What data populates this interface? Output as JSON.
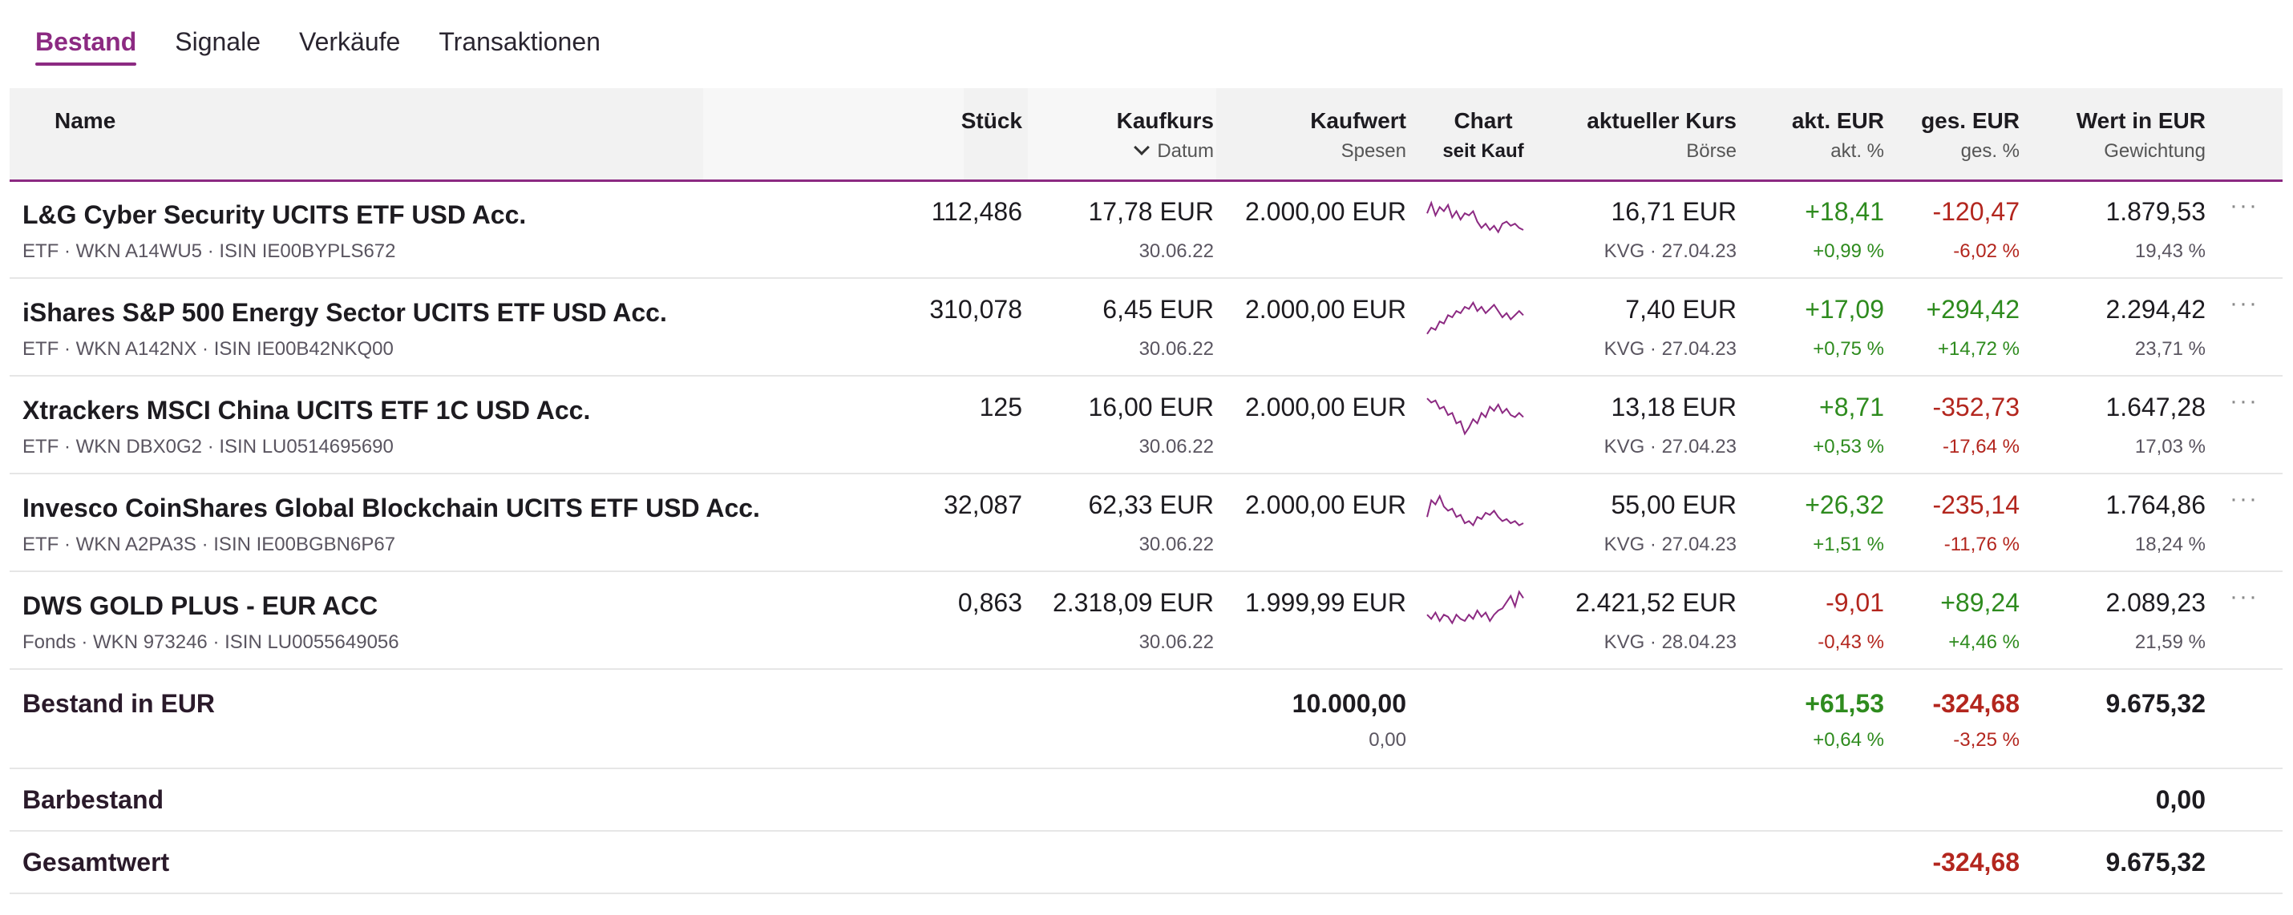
{
  "tabs": [
    {
      "label": "Bestand",
      "active": true
    },
    {
      "label": "Signale",
      "active": false
    },
    {
      "label": "Verkäufe",
      "active": false
    },
    {
      "label": "Transaktionen",
      "active": false
    }
  ],
  "columns": {
    "name": "Name",
    "stueck": "Stück",
    "kaufkurs": "Kaufkurs",
    "kaufkurs_sub": "Datum",
    "kaufwert": "Kaufwert",
    "kaufwert_sub": "Spesen",
    "chart": "Chart",
    "chart_sub": "seit Kauf",
    "kurs": "aktueller Kurs",
    "kurs_sub": "Börse",
    "akt": "akt. EUR",
    "akt_sub": "akt. %",
    "ges": "ges. EUR",
    "ges_sub": "ges. %",
    "wert": "Wert in EUR",
    "wert_sub": "Gewichtung"
  },
  "colors": {
    "accent": "#8c2a82",
    "positive": "#2e8b1e",
    "negative": "#b3261e"
  },
  "rows": [
    {
      "name": "L&G Cyber Security UCITS ETF USD Acc.",
      "meta": "ETF · WKN A14WU5 · ISIN IE00BYPLS672",
      "stueck": "112,486",
      "kaufkurs": "17,78 EUR",
      "datum": "30.06.22",
      "kaufwert": "2.000,00 EUR",
      "kurs": "16,71 EUR",
      "boerse": "KVG · 27.04.23",
      "akt_eur": "+18,41",
      "akt_pct": "+0,99 %",
      "ges_eur": "-120,47",
      "ges_pct": "-6,02 %",
      "wert": "1.879,53",
      "gewichtung": "19,43 %",
      "more_icon": "more-horizontal-icon",
      "spark": [
        0.35,
        0.1,
        0.4,
        0.2,
        0.3,
        0.15,
        0.45,
        0.3,
        0.5,
        0.35,
        0.4,
        0.3,
        0.55,
        0.7,
        0.6,
        0.75,
        0.65,
        0.8,
        0.6,
        0.55,
        0.65,
        0.6,
        0.7,
        0.75
      ]
    },
    {
      "name": "iShares S&P 500 Energy Sector UCITS ETF USD Acc.",
      "meta": "ETF · WKN A142NX · ISIN IE00B42NKQ00",
      "stueck": "310,078",
      "kaufkurs": "6,45 EUR",
      "datum": "30.06.22",
      "kaufwert": "2.000,00 EUR",
      "kurs": "7,40 EUR",
      "boerse": "KVG · 27.04.23",
      "akt_eur": "+17,09",
      "akt_pct": "+0,75 %",
      "ges_eur": "+294,42",
      "ges_pct": "+14,72 %",
      "wert": "2.294,42",
      "gewichtung": "23,71 %",
      "more_icon": "more-horizontal-icon",
      "spark": [
        0.9,
        0.75,
        0.8,
        0.6,
        0.65,
        0.45,
        0.5,
        0.35,
        0.4,
        0.25,
        0.3,
        0.15,
        0.35,
        0.25,
        0.4,
        0.3,
        0.2,
        0.35,
        0.5,
        0.4,
        0.55,
        0.45,
        0.35,
        0.45
      ]
    },
    {
      "name": "Xtrackers MSCI China UCITS ETF 1C USD Acc.",
      "meta": "ETF · WKN DBX0G2 · ISIN LU0514695690",
      "stueck": "125",
      "kaufkurs": "16,00 EUR",
      "datum": "30.06.22",
      "kaufwert": "2.000,00 EUR",
      "kurs": "13,18 EUR",
      "boerse": "KVG · 27.04.23",
      "akt_eur": "+8,71",
      "akt_pct": "+0,53 %",
      "ges_eur": "-352,73",
      "ges_pct": "-17,64 %",
      "wert": "1.647,28",
      "gewichtung": "17,03 %",
      "more_icon": "more-horizontal-icon",
      "spark": [
        0.1,
        0.2,
        0.15,
        0.35,
        0.3,
        0.5,
        0.45,
        0.7,
        0.65,
        0.95,
        0.8,
        0.6,
        0.7,
        0.45,
        0.55,
        0.3,
        0.4,
        0.25,
        0.45,
        0.35,
        0.5,
        0.55,
        0.45,
        0.55
      ]
    },
    {
      "name": "Invesco CoinShares Global Blockchain UCITS ETF USD Acc.",
      "meta": "ETF · WKN A2PA3S · ISIN IE00BGBN6P67",
      "stueck": "32,087",
      "kaufkurs": "62,33 EUR",
      "datum": "30.06.22",
      "kaufwert": "2.000,00 EUR",
      "kurs": "55,00 EUR",
      "boerse": "KVG · 27.04.23",
      "akt_eur": "+26,32",
      "akt_pct": "+1,51 %",
      "ges_eur": "-235,14",
      "ges_pct": "-11,76 %",
      "wert": "1.764,86",
      "gewichtung": "18,24 %",
      "more_icon": "more-horizontal-icon",
      "spark": [
        0.6,
        0.2,
        0.3,
        0.1,
        0.35,
        0.45,
        0.4,
        0.6,
        0.55,
        0.75,
        0.7,
        0.8,
        0.6,
        0.65,
        0.5,
        0.55,
        0.45,
        0.6,
        0.7,
        0.65,
        0.75,
        0.7,
        0.8,
        0.75
      ]
    },
    {
      "name": "DWS GOLD PLUS - EUR ACC",
      "meta": "Fonds · WKN 973246 · ISIN LU0055649056",
      "stueck": "0,863",
      "kaufkurs": "2.318,09 EUR",
      "datum": "30.06.22",
      "kaufwert": "1.999,99 EUR",
      "kurs": "2.421,52 EUR",
      "boerse": "KVG · 28.04.23",
      "akt_eur": "-9,01",
      "akt_pct": "-0,43 %",
      "ges_eur": "+89,24",
      "ges_pct": "+4,46 %",
      "wert": "2.089,23",
      "gewichtung": "21,59 %",
      "more_icon": "more-horizontal-icon",
      "spark": [
        0.6,
        0.7,
        0.55,
        0.75,
        0.6,
        0.65,
        0.8,
        0.6,
        0.7,
        0.75,
        0.6,
        0.7,
        0.5,
        0.65,
        0.55,
        0.75,
        0.6,
        0.5,
        0.45,
        0.3,
        0.15,
        0.4,
        0.05,
        0.2
      ]
    }
  ],
  "summary": {
    "label": "Bestand in EUR",
    "kaufwert": "10.000,00",
    "spesen": "0,00",
    "akt_eur": "+61,53",
    "akt_pct": "+0,64 %",
    "ges_eur": "-324,68",
    "ges_pct": "-3,25 %",
    "wert": "9.675,32"
  },
  "barbestand": {
    "label": "Barbestand",
    "wert": "0,00"
  },
  "gesamtwert": {
    "label": "Gesamtwert",
    "ges_eur": "-324,68",
    "wert": "9.675,32"
  }
}
